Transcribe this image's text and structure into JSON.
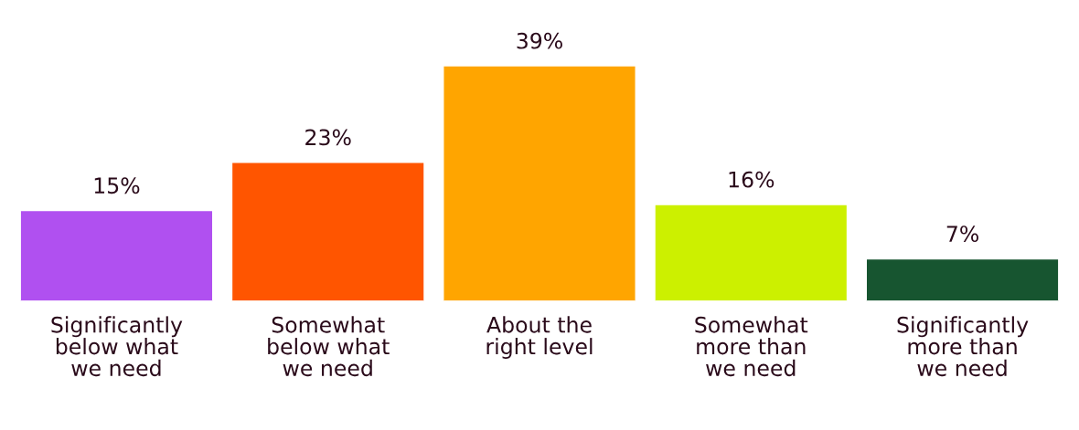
{
  "chart_data": {
    "type": "bar",
    "categories": [
      "Significantly\nbelow what\nwe need",
      "Somewhat\nbelow what\nwe need",
      "About the\nright level",
      "Somewhat\nmore than\nwe need",
      "Significantly\nmore than\nwe need"
    ],
    "values": [
      15,
      23,
      39,
      16,
      7
    ],
    "colors": [
      "#b050f0",
      "#ff5500",
      "#ffa500",
      "#ccf000",
      "#175530"
    ],
    "value_labels": [
      "15%",
      "23%",
      "39%",
      "16%",
      "7%"
    ],
    "grid": false,
    "legend": false
  }
}
